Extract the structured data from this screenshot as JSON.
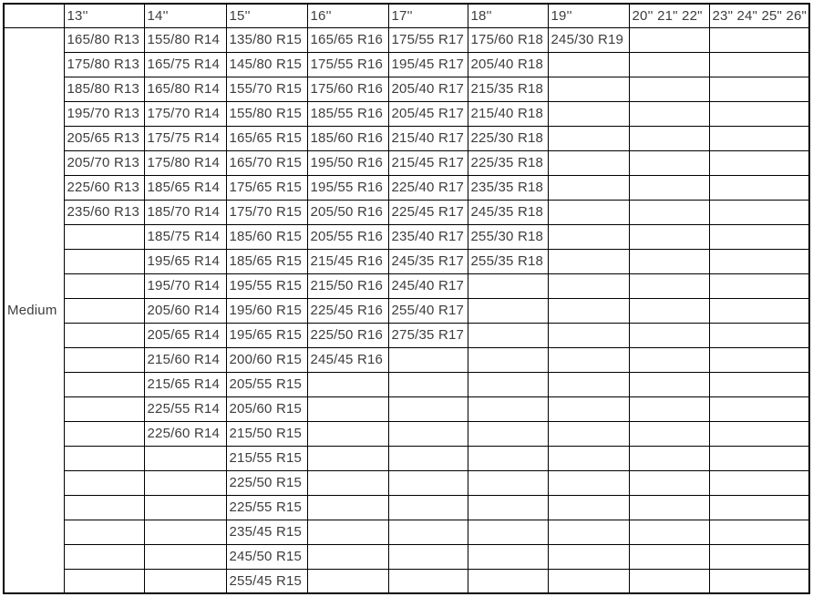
{
  "table": {
    "row_group_label": "Medium",
    "num_data_rows": 23,
    "columns": [
      {
        "header": "13''",
        "sizes": [
          "165/80 R13",
          "175/80 R13",
          "185/80 R13",
          "195/70 R13",
          "205/65 R13",
          "205/70 R13",
          "225/60 R13",
          "235/60 R13"
        ]
      },
      {
        "header": "14''",
        "sizes": [
          "155/80 R14",
          "165/75 R14",
          "165/80 R14",
          "175/70 R14",
          "175/75 R14",
          "175/80 R14",
          "185/65 R14",
          "185/70 R14",
          "185/75 R14",
          "195/65 R14",
          "195/70 R14",
          "205/60 R14",
          "205/65 R14",
          "215/60 R14",
          "215/65 R14",
          "225/55 R14",
          "225/60 R14"
        ]
      },
      {
        "header": "15''",
        "sizes": [
          "135/80 R15",
          "145/80 R15",
          "155/70 R15",
          "155/80 R15",
          "165/65 R15",
          "165/70 R15",
          "175/65 R15",
          "175/70 R15",
          "185/60 R15",
          "185/65 R15",
          "195/55 R15",
          "195/60 R15",
          "195/65 R15",
          "200/60 R15",
          "205/55 R15",
          "205/60 R15",
          "215/50 R15",
          "215/55 R15",
          "225/50 R15",
          "225/55 R15",
          "235/45 R15",
          "245/50 R15",
          "255/45 R15"
        ]
      },
      {
        "header": "16''",
        "sizes": [
          "165/65 R16",
          "175/55 R16",
          "175/60 R16",
          "185/55 R16",
          "185/60 R16",
          "195/50 R16",
          "195/55 R16",
          "205/50 R16",
          "205/55 R16",
          "215/45 R16",
          "215/50 R16",
          "225/45 R16",
          "225/50 R16",
          "245/45 R16"
        ]
      },
      {
        "header": "17''",
        "sizes": [
          "175/55 R17",
          "195/45 R17",
          "205/40 R17",
          "205/45 R17",
          "215/40 R17",
          "215/45 R17",
          "225/40 R17",
          "225/45 R17",
          "235/40 R17",
          "245/35 R17",
          "245/40 R17",
          "255/40 R17",
          "275/35 R17"
        ]
      },
      {
        "header": "18''",
        "sizes": [
          "175/60 R18",
          "205/40 R18",
          "215/35 R18",
          "215/40 R18",
          "225/30 R18",
          "225/35 R18",
          "235/35 R18",
          "245/35 R18",
          "255/30 R18",
          "255/35 R18"
        ]
      },
      {
        "header": "19''",
        "sizes": [
          "245/30 R19"
        ]
      },
      {
        "header": "20'' 21\" 22\"",
        "sizes": []
      },
      {
        "header": "23\" 24\" 25\" 26\"",
        "sizes": []
      }
    ]
  },
  "colors": {
    "border": "#000000",
    "text": "#3d3d3d",
    "background": "#ffffff"
  }
}
